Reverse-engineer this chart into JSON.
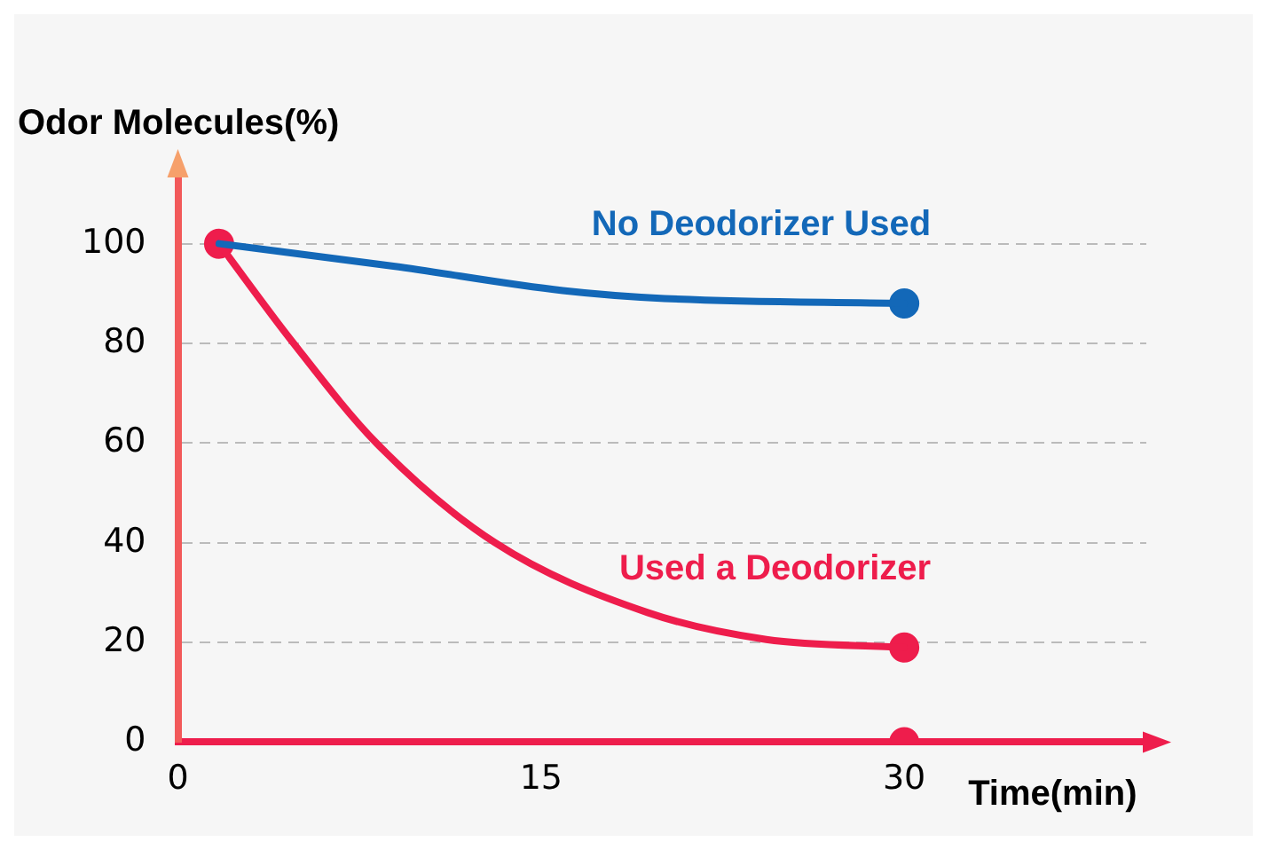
{
  "chart_data": {
    "type": "line",
    "xlabel": "Time(min)",
    "ylabel": "Odor Molecules(%)",
    "xlim": [
      0,
      40
    ],
    "xticks": [
      0,
      15,
      30
    ],
    "ylim": [
      0,
      114
    ],
    "yticks": [
      0,
      20,
      40,
      60,
      80,
      100
    ],
    "grid": "y",
    "series": [
      {
        "name": "No Deodorizer Used",
        "color": "#1368b8",
        "x": [
          1.7,
          8.9,
          15.9,
          20.1,
          30
        ],
        "values": [
          100,
          95.5,
          90.6,
          89,
          88
        ]
      },
      {
        "name": "Used a Deodorizer",
        "color": "#ee1d4c",
        "x": [
          1.7,
          4.7,
          8.2,
          13.1,
          19.4,
          24.3,
          30
        ],
        "values": [
          100,
          80.5,
          60,
          40,
          26,
          20.6,
          19
        ]
      },
      {
        "type": "scatter",
        "color": "#1368b8",
        "x": [
          30
        ],
        "values": [
          88
        ]
      },
      {
        "type": "scatter",
        "color": "#ee1d4c",
        "x": [
          1.7,
          30,
          30
        ],
        "values": [
          100,
          19,
          0
        ]
      }
    ]
  }
}
